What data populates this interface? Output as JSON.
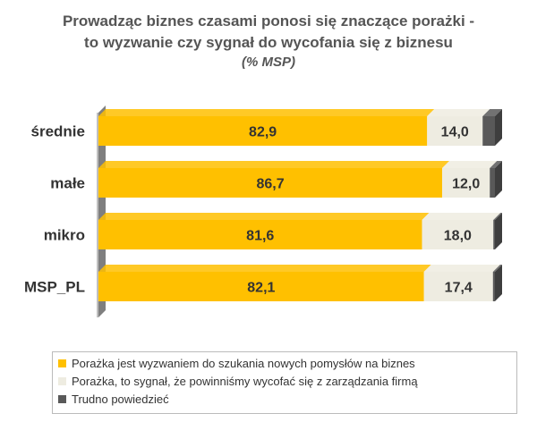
{
  "chart_data": {
    "type": "bar",
    "stacked": true,
    "orientation": "horizontal",
    "title": "Prowadząc biznes czasami ponosi się znaczące porażki -",
    "title_line2": "to wyzwanie czy sygnał do wycofania się z biznesu",
    "subtitle": "(% MSP)",
    "categories": [
      "średnie",
      "małe",
      "mikro",
      "MSP_PL"
    ],
    "xlim": [
      0,
      100
    ],
    "grid": false,
    "legend_position": "bottom",
    "series": [
      {
        "name": "Porażka jest wyzwaniem do szukania nowych pomysłów na biznes",
        "color": "#FFC000",
        "values": [
          82.9,
          86.7,
          81.6,
          82.1
        ],
        "labels": [
          "82,9",
          "86,7",
          "81,6",
          "82,1"
        ]
      },
      {
        "name": "Porażka, to sygnał, że powinniśmy wycofać się z zarządzania firmą",
        "color": "#EEECE1",
        "values": [
          14.0,
          12.0,
          18.0,
          17.4
        ],
        "labels": [
          "14,0",
          "12,0",
          "18,0",
          "17,4"
        ]
      },
      {
        "name": "Trudno powiedzieć",
        "color": "#595959",
        "values": [
          3.1,
          1.3,
          0.4,
          0.5
        ]
      }
    ]
  }
}
